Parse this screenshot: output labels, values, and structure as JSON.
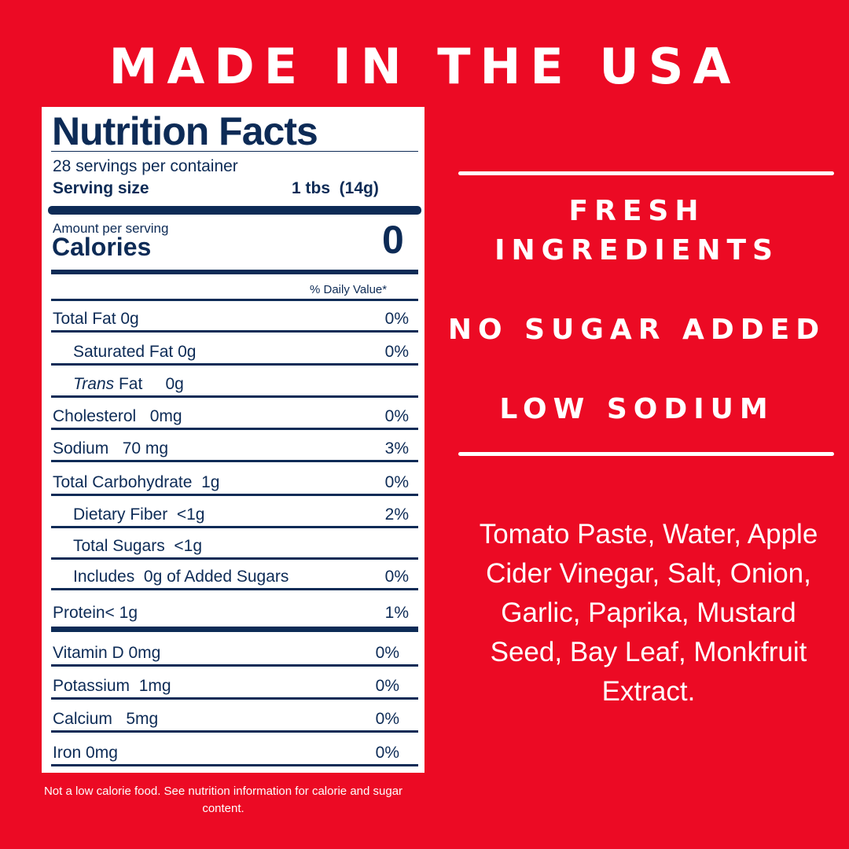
{
  "headline": "MADE IN THE USA",
  "nutrition": {
    "title": "Nutrition Facts",
    "servings": "28 servings per container",
    "serving_size_label": "Serving size",
    "serving_size_value": "1 tbs  (14g)",
    "amount_per_serving": "Amount per serving",
    "calories_label": "Calories",
    "calories_value": "0",
    "dv_header": "% Daily Value*",
    "rows": [
      {
        "name": "Total Fat  0g",
        "dv": "0%"
      },
      {
        "name": "Saturated Fat  0g",
        "dv": "0%"
      },
      {
        "name_italic": "Trans",
        "name_rest": " Fat     0g",
        "dv": ""
      },
      {
        "name": "Cholesterol   0mg",
        "dv": "0%"
      },
      {
        "name": "Sodium   70 mg",
        "dv": "3%"
      },
      {
        "name": "Total Carbohydrate  1g",
        "dv": "0%"
      },
      {
        "name": "Dietary Fiber  <1g",
        "dv": "2%"
      },
      {
        "name": "Total Sugars  <1g",
        "dv": ""
      },
      {
        "name": "Includes  0g of Added Sugars",
        "dv": "0%"
      },
      {
        "name": "Protein< 1g",
        "dv": "1%"
      },
      {
        "name": "Vitamin D 0mg",
        "dv": "0%"
      },
      {
        "name": "Potassium  1mg",
        "dv": "0%"
      },
      {
        "name": "Calcium   5mg",
        "dv": "0%"
      },
      {
        "name": "Iron 0mg",
        "dv": "0%"
      }
    ]
  },
  "footnote": "Not a low calorie food. See nutrition information for calorie and sugar content.",
  "claims": {
    "fresh_line1": "FRESH",
    "fresh_line2": "INGREDIENTS",
    "no_sugar": "NO SUGAR ADDED",
    "low_sodium": "LOW SODIUM"
  },
  "ingredients": "Tomato Paste, Water, Apple Cider Vinegar, Salt, Onion, Garlic, Paprika, Mustard Seed, Bay Leaf, Monkfruit Extract.",
  "colors": {
    "background": "#ec0a24",
    "label_ink": "#0d2b56",
    "text": "#ffffff"
  }
}
